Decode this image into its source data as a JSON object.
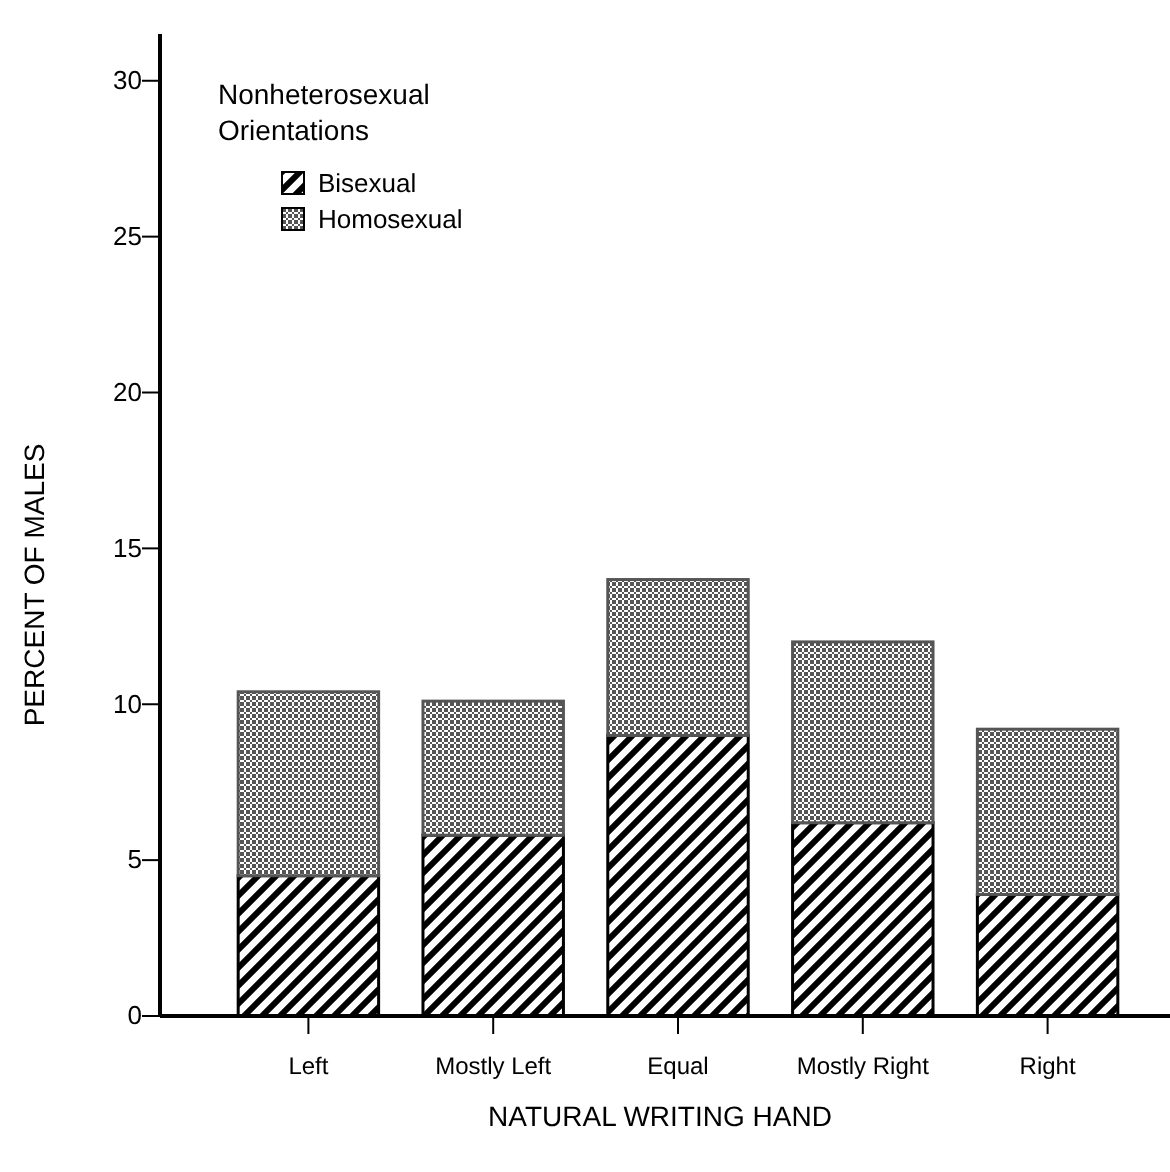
{
  "chart_data": {
    "type": "bar",
    "stacked": true,
    "xlabel": "NATURAL WRITING HAND",
    "ylabel": "PERCENT OF MALES",
    "legend_title": "Nonheterosexual Orientations",
    "legend": "top left",
    "categories": [
      "Left",
      "Mostly Left",
      "Equal",
      "Mostly Right",
      "Right"
    ],
    "series": [
      {
        "name": "Bisexual",
        "color": "#000000",
        "values": [
          4.5,
          5.8,
          9,
          6.2,
          3.9
        ]
      },
      {
        "name": "Homosexual",
        "color": "#555555",
        "values": [
          5.9,
          4.3,
          5,
          5.8,
          5.3
        ]
      }
    ],
    "ylim": [
      0,
      31.5
    ],
    "yticks": [
      0,
      5,
      10,
      15,
      20,
      25,
      30
    ],
    "grid": false
  }
}
